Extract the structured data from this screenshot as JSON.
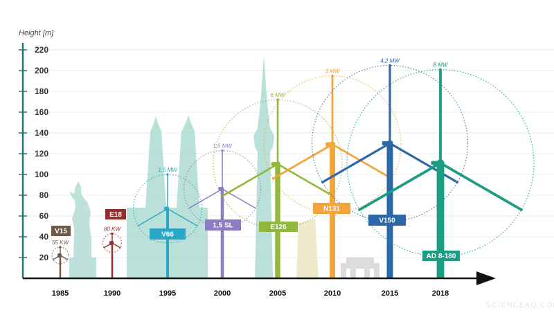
{
  "colors": {
    "axis": "#1f7a6b",
    "grid": "#d9d9d9",
    "landmark": "#a8d8cf",
    "pisa": "#efe9cc",
    "brandenburg": "#dcdcdc"
  },
  "chart_data": {
    "type": "scatter",
    "ylabel": "Height [m]",
    "xlabel": "",
    "ylim": [
      0,
      220
    ],
    "yticks": [
      20,
      40,
      60,
      80,
      100,
      120,
      140,
      160,
      180,
      200,
      220
    ],
    "grid": true,
    "x_categories": [
      "1985",
      "1990",
      "1995",
      "2000",
      "2005",
      "2010",
      "2015",
      "2018"
    ],
    "turbines": [
      {
        "model": "V15",
        "year": "1985",
        "power": "55 KW",
        "hub_height": 22,
        "tip_height": 30,
        "color": "#6f5a4a"
      },
      {
        "model": "E18",
        "year": "1990",
        "power": "80 KW",
        "hub_height": 34,
        "tip_height": 43,
        "color": "#9b2a2a"
      },
      {
        "model": "V66",
        "year": "1995",
        "power": "1,5 MW",
        "hub_height": 67,
        "tip_height": 100,
        "color": "#2aa7c7"
      },
      {
        "model": "1,5 SL",
        "year": "2000",
        "power": "1,5 MW",
        "hub_height": 86,
        "tip_height": 123,
        "color": "#8e7cc3"
      },
      {
        "model": "E126",
        "year": "2005",
        "power": "6 MW",
        "hub_height": 110,
        "tip_height": 172,
        "color": "#8fb83c"
      },
      {
        "model": "N131",
        "year": "2010",
        "power": "3 MW",
        "hub_height": 129,
        "tip_height": 195,
        "color": "#f3a43b"
      },
      {
        "model": "V150",
        "year": "2015",
        "power": "4,2 MW",
        "hub_height": 130,
        "tip_height": 205,
        "color": "#2c68a8"
      },
      {
        "model": "AD 8-180",
        "year": "2018",
        "power": "8 MW",
        "hub_height": 111,
        "tip_height": 201,
        "color": "#1b9d83"
      }
    ]
  },
  "watermark": "SCIENCEAQ.COM"
}
